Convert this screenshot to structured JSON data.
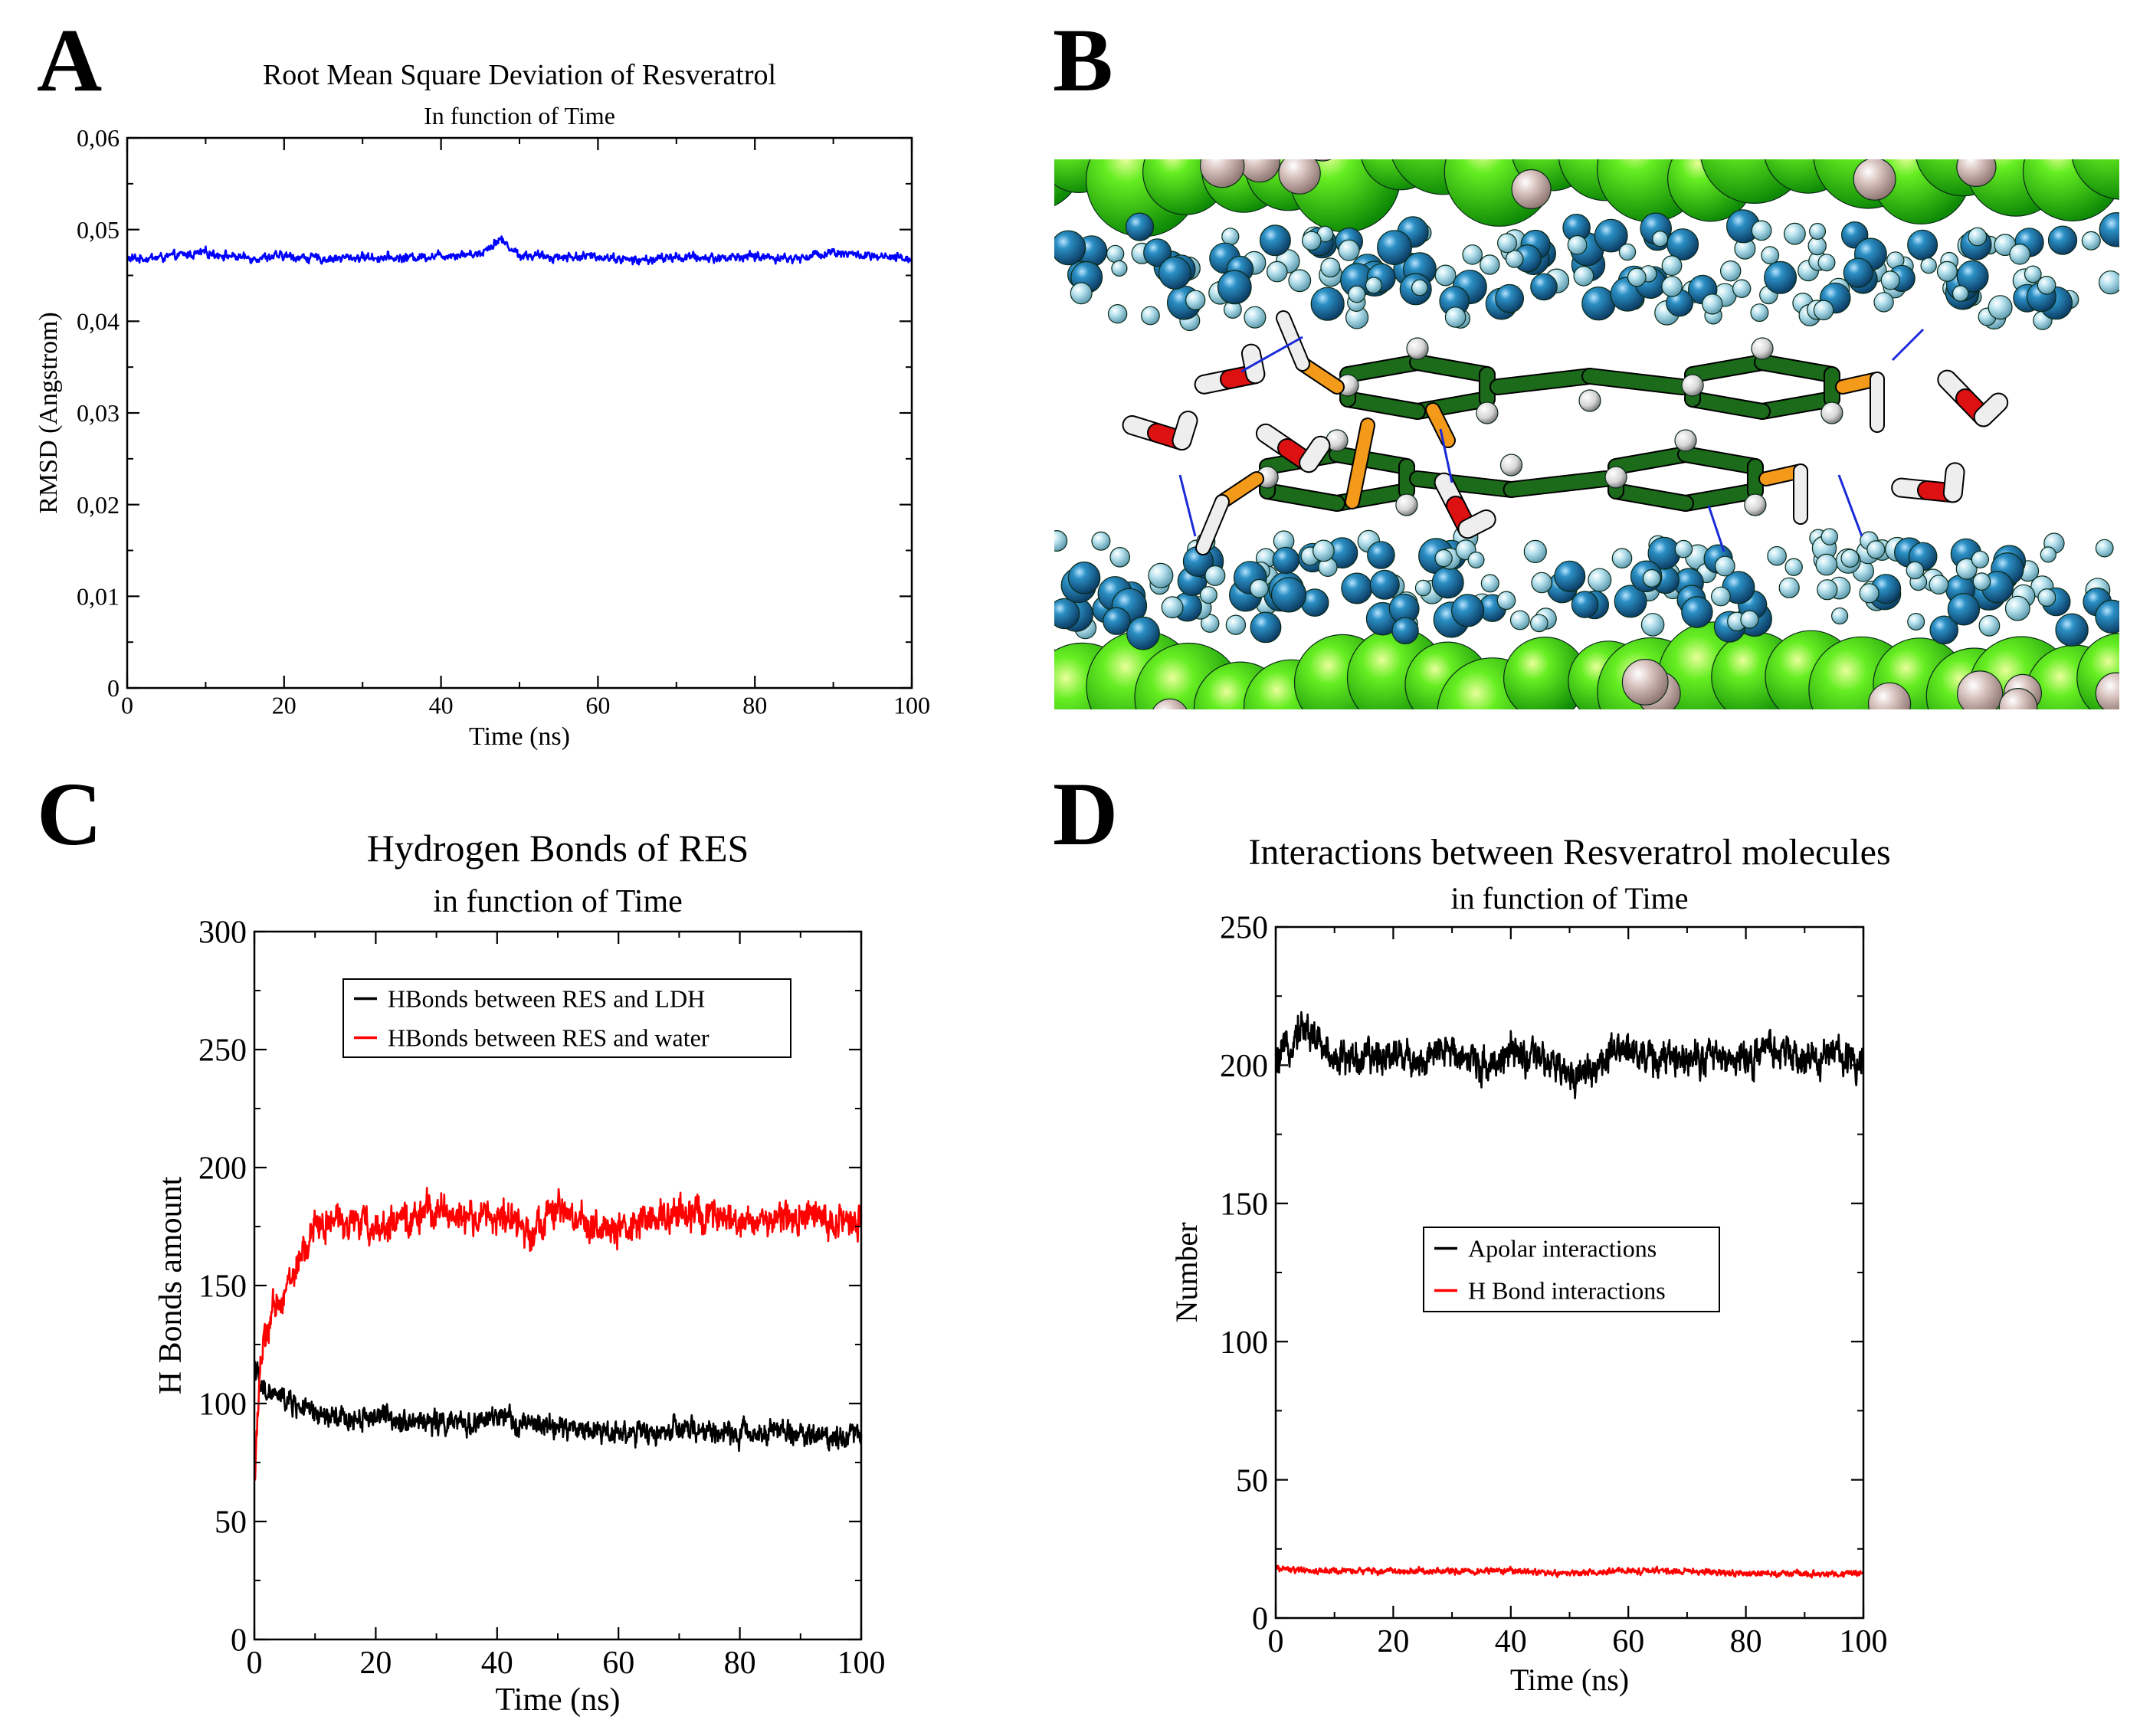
{
  "figure": {
    "panel_labels": [
      "A",
      "B",
      "C",
      "D"
    ]
  },
  "colors": {
    "series_blue": "#0000ff",
    "series_black": "#000000",
    "series_red": "#ff0000",
    "ldh_green": "#33dd10",
    "ldh_blue": "#1f77a8",
    "ldh_lightblue": "#a8dbe8",
    "carbon": "#1b6b1b",
    "oxygen": "#dd1111",
    "hydrogen": "#eeeeee",
    "linker": "#f39a1a"
  },
  "chart_data": [
    {
      "panel": "A",
      "type": "line",
      "title": "Root Mean Square Deviation of Resveratrol",
      "subtitle": "In function of Time",
      "xlabel": "Time (ns)",
      "ylabel": "RMSD (Angstrom)",
      "xlim": [
        0,
        100
      ],
      "ylim": [
        0,
        0.06
      ],
      "xticks": [
        0,
        20,
        40,
        60,
        80,
        100
      ],
      "xtick_labels": [
        "0",
        "20",
        "40",
        "60",
        "80",
        "100"
      ],
      "yticks": [
        0,
        0.01,
        0.02,
        0.03,
        0.04,
        0.05,
        0.06
      ],
      "ytick_labels": [
        "0",
        "0,01",
        "0,02",
        "0,03",
        "0,04",
        "0,05",
        "0,06"
      ],
      "series": [
        {
          "name": "RMSD",
          "color": "#0000ff",
          "x": [
            0,
            5,
            10,
            15,
            20,
            25,
            30,
            35,
            40,
            45,
            47.5,
            50,
            55,
            60,
            65,
            70,
            75,
            80,
            85,
            90,
            95,
            100
          ],
          "y": [
            0.0468,
            0.047,
            0.0475,
            0.0469,
            0.0471,
            0.0468,
            0.047,
            0.0469,
            0.0472,
            0.0474,
            0.049,
            0.0472,
            0.047,
            0.0471,
            0.0466,
            0.047,
            0.0469,
            0.0471,
            0.0468,
            0.0476,
            0.047,
            0.0468
          ],
          "noise": 0.0007
        }
      ]
    },
    {
      "panel": "C",
      "type": "line",
      "title": "Hydrogen Bonds of RES",
      "subtitle": "in function of Time",
      "xlabel": "Time (ns)",
      "ylabel": "H Bonds amount",
      "xlim": [
        0,
        100
      ],
      "ylim": [
        0,
        300
      ],
      "xticks": [
        0,
        20,
        40,
        60,
        80,
        100
      ],
      "xtick_labels": [
        "0",
        "20",
        "40",
        "60",
        "80",
        "100"
      ],
      "yticks": [
        0,
        50,
        100,
        150,
        200,
        250,
        300
      ],
      "ytick_labels": [
        "0",
        "50",
        "100",
        "150",
        "200",
        "250",
        "300"
      ],
      "legend": [
        "HBonds between RES and LDH",
        "HBonds between RES and water"
      ],
      "series": [
        {
          "name": "HBonds between RES and LDH",
          "color": "#000000",
          "x": [
            0,
            0.5,
            1,
            3,
            5,
            8,
            10,
            15,
            20,
            25,
            30,
            35,
            40,
            45,
            50,
            55,
            60,
            65,
            70,
            75,
            80,
            85,
            90,
            95,
            100
          ],
          "y": [
            118,
            112,
            106,
            104,
            102,
            98,
            95,
            93,
            95,
            93,
            92,
            91,
            94,
            91,
            90,
            89,
            88,
            87,
            89,
            88,
            87,
            89,
            87,
            86,
            88
          ],
          "noise": 7
        },
        {
          "name": "HBonds between RES and water",
          "color": "#ff0000",
          "x": [
            0,
            0.3,
            1,
            2,
            3,
            5,
            7,
            9,
            10,
            12,
            15,
            20,
            25,
            30,
            35,
            40,
            45,
            50,
            55,
            60,
            65,
            70,
            75,
            80,
            85,
            90,
            95,
            100
          ],
          "y": [
            65,
            85,
            118,
            128,
            138,
            148,
            158,
            168,
            176,
            176,
            178,
            175,
            177,
            183,
            178,
            180,
            173,
            182,
            176,
            172,
            178,
            182,
            178,
            176,
            178,
            180,
            177,
            178
          ],
          "noise": 10
        }
      ]
    },
    {
      "panel": "D",
      "type": "line",
      "title": "Interactions between Resveratrol molecules",
      "subtitle": "in function of Time",
      "xlabel": "Time (ns)",
      "ylabel": "Number",
      "xlim": [
        0,
        100
      ],
      "ylim": [
        0,
        250
      ],
      "xticks": [
        0,
        20,
        40,
        60,
        80,
        100
      ],
      "xtick_labels": [
        "0",
        "20",
        "40",
        "60",
        "80",
        "100"
      ],
      "yticks": [
        0,
        50,
        100,
        150,
        200,
        250
      ],
      "ytick_labels": [
        "0",
        "50",
        "100",
        "150",
        "200",
        "250"
      ],
      "legend": [
        "Apolar interactions",
        "H Bond interactions"
      ],
      "series": [
        {
          "name": "Apolar interactions",
          "color": "#000000",
          "x": [
            0,
            2,
            4,
            6,
            8,
            10,
            15,
            20,
            25,
            30,
            35,
            40,
            45,
            50,
            55,
            60,
            65,
            70,
            75,
            80,
            85,
            90,
            95,
            100
          ],
          "y": [
            200,
            206,
            214,
            212,
            206,
            203,
            202,
            205,
            201,
            206,
            200,
            204,
            202,
            196,
            200,
            207,
            201,
            204,
            203,
            202,
            206,
            201,
            204,
            202
          ],
          "noise": 9
        },
        {
          "name": "H Bond interactions",
          "color": "#ff0000",
          "x": [
            0,
            5,
            10,
            20,
            30,
            40,
            50,
            60,
            70,
            80,
            90,
            100
          ],
          "y": [
            18,
            17,
            17,
            17,
            17,
            17,
            16,
            17,
            17,
            16,
            16,
            16
          ],
          "noise": 1.6
        }
      ]
    }
  ]
}
